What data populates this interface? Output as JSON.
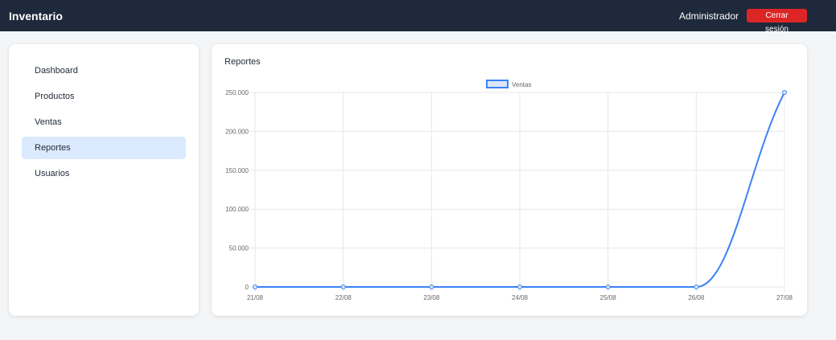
{
  "app": {
    "title": "Inventario",
    "user": "Administrador",
    "logout_label": "Cerrar sesión"
  },
  "sidebar": {
    "items": [
      {
        "label": "Dashboard",
        "active": false
      },
      {
        "label": "Productos",
        "active": false
      },
      {
        "label": "Ventas",
        "active": false
      },
      {
        "label": "Reportes",
        "active": true
      },
      {
        "label": "Usuarios",
        "active": false
      }
    ]
  },
  "main": {
    "title": "Reportes"
  },
  "colors": {
    "topbar": "#1e293b",
    "logout": "#dc2626",
    "active_nav": "#dbeafe",
    "series_line": "#3b82f6",
    "series_fill": "#dbe6f7"
  },
  "chart_data": {
    "type": "line",
    "categories": [
      "21/08",
      "22/08",
      "23/08",
      "24/08",
      "25/08",
      "26/08",
      "27/08"
    ],
    "series": [
      {
        "name": "Ventas",
        "values": [
          0,
          0,
          0,
          0,
          0,
          0,
          250000
        ]
      }
    ],
    "ylim": [
      0,
      250000
    ],
    "yticks": [
      "0",
      "50.000",
      "100.000",
      "150.000",
      "200.000",
      "250.000"
    ],
    "grid": true,
    "legend": "top-center"
  }
}
